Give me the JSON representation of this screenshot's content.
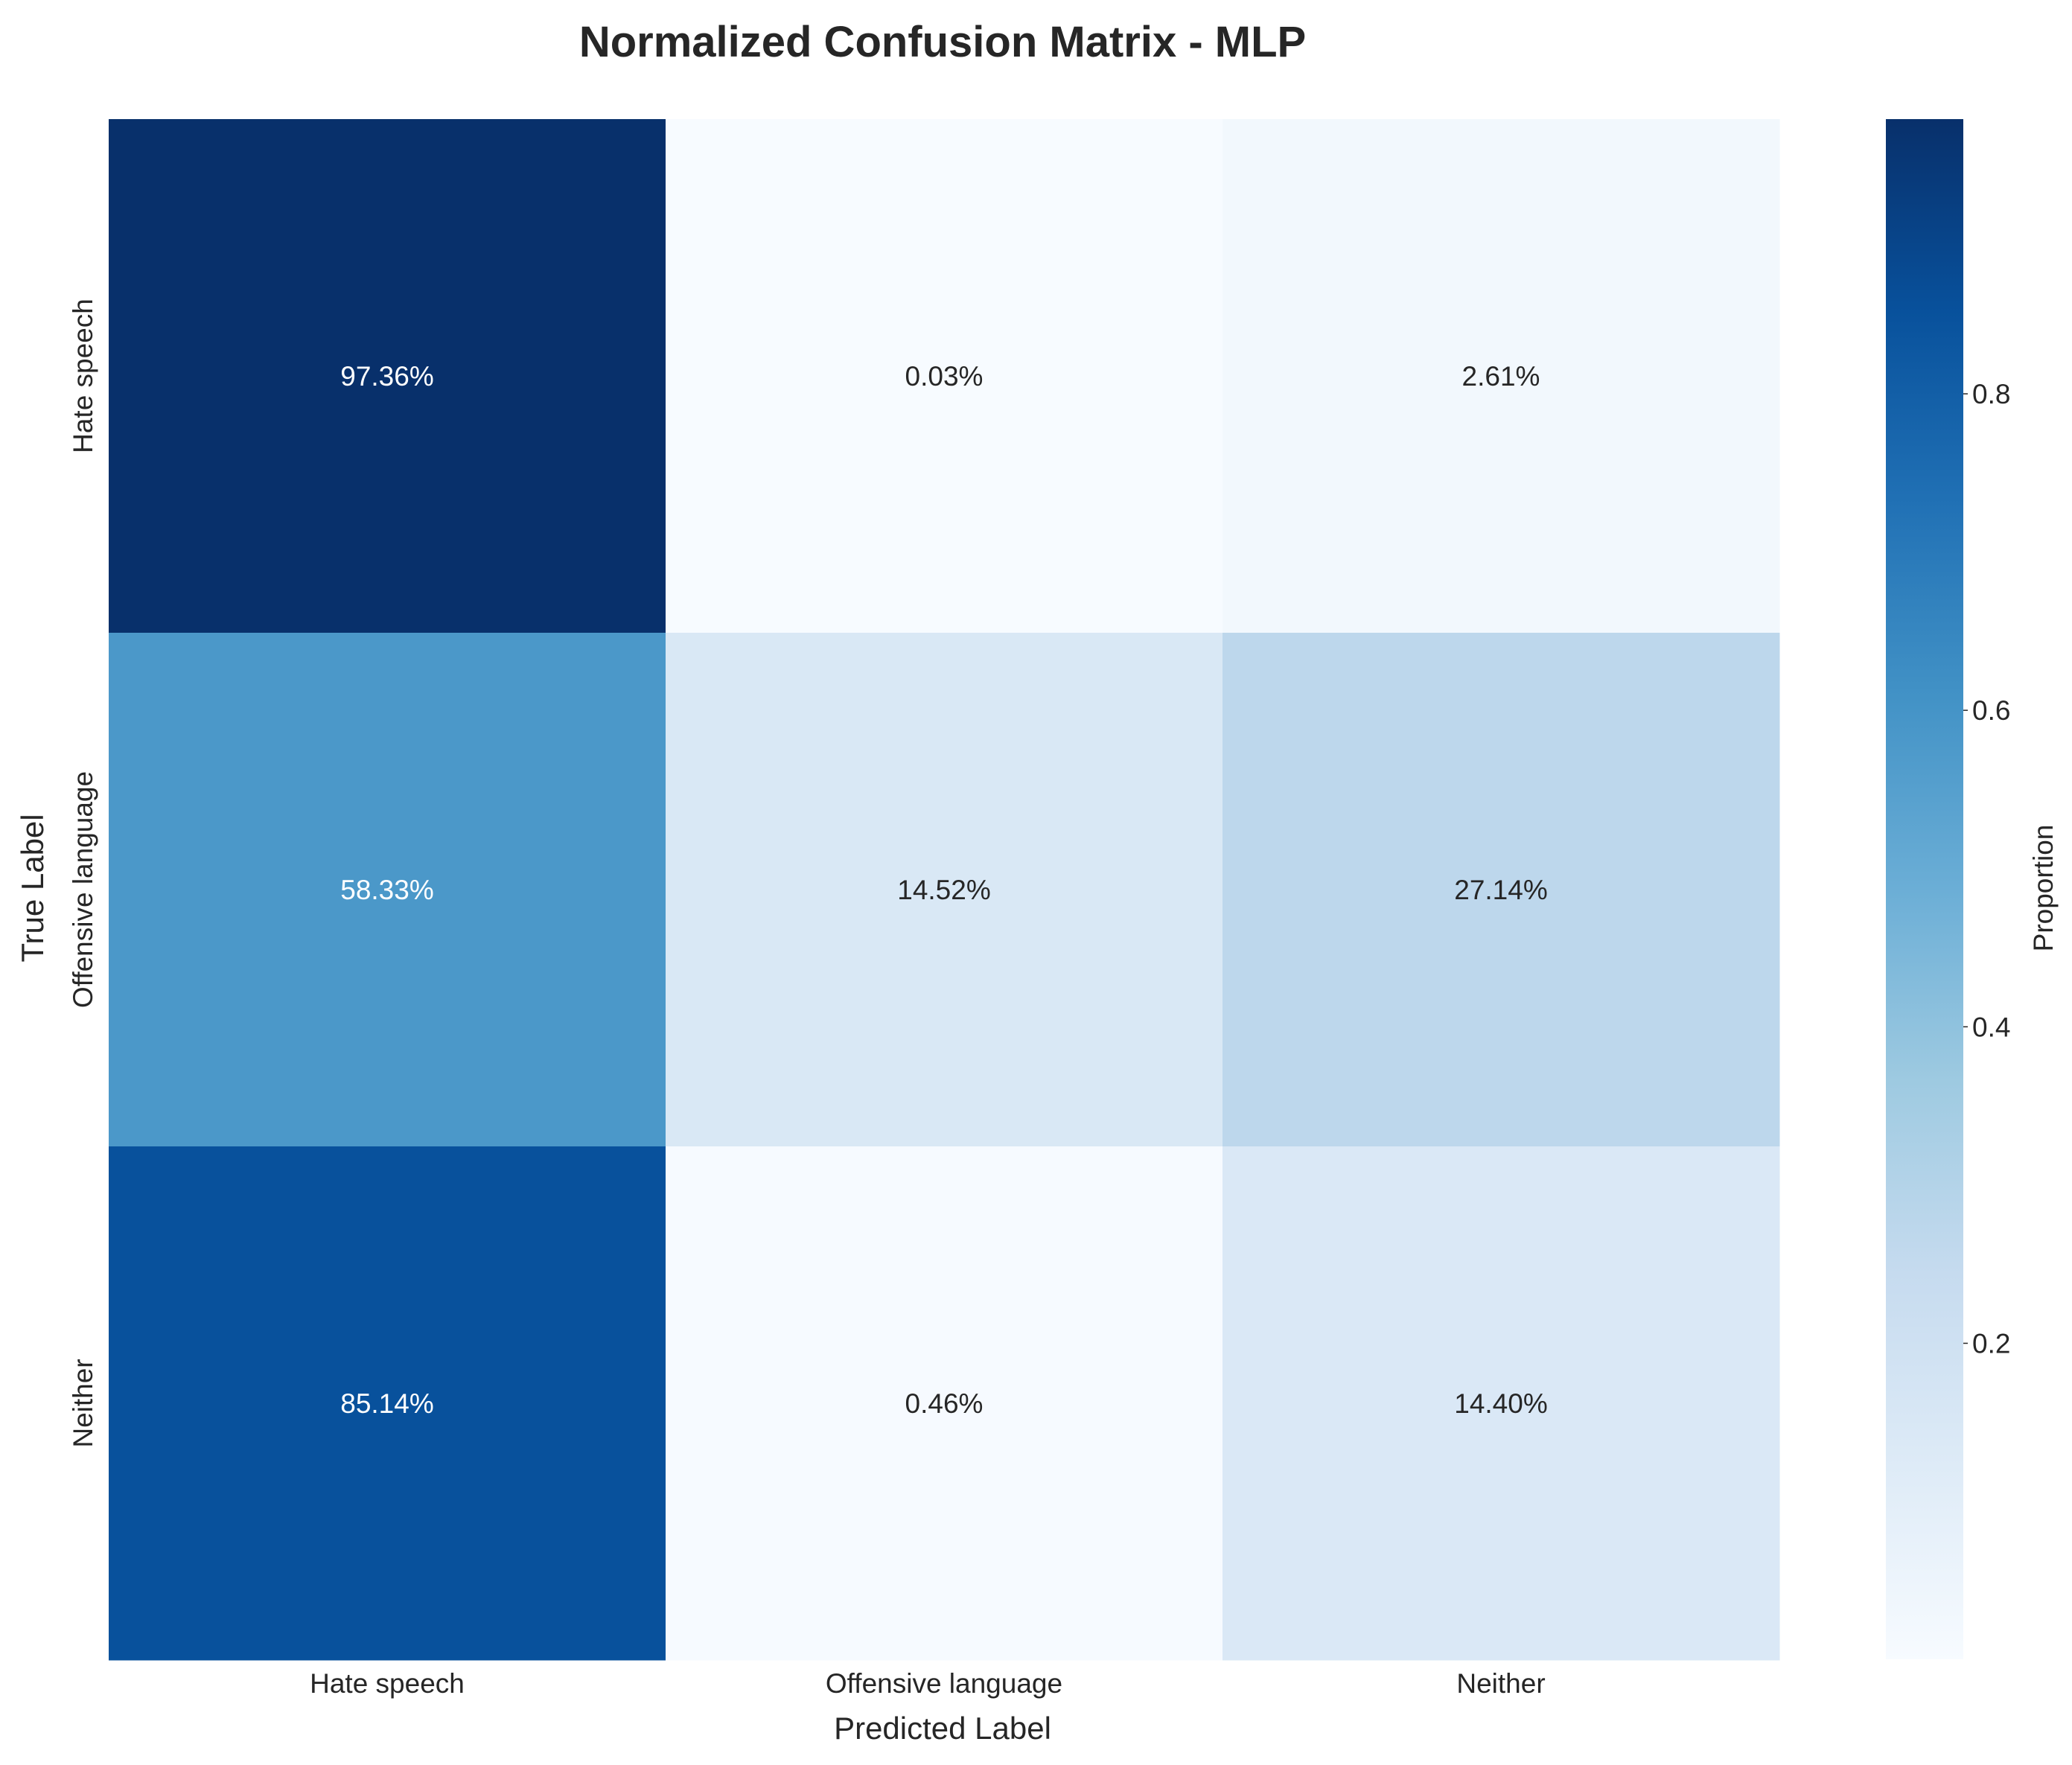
{
  "chart_data": {
    "type": "heatmap",
    "title": "Normalized Confusion Matrix - MLP",
    "xlabel": "Predicted Label",
    "ylabel": "True Label",
    "x_categories": [
      "Hate speech",
      "Offensive language",
      "Neither"
    ],
    "y_categories": [
      "Hate speech",
      "Offensive language",
      "Neither"
    ],
    "values": [
      [
        0.9736,
        0.0003,
        0.0261
      ],
      [
        0.5833,
        0.1452,
        0.2714
      ],
      [
        0.8514,
        0.0046,
        0.144
      ]
    ],
    "annotations": [
      [
        "97.36%",
        "0.03%",
        "2.61%"
      ],
      [
        "58.33%",
        "14.52%",
        "27.14%"
      ],
      [
        "85.14%",
        "0.46%",
        "14.40%"
      ]
    ],
    "colormap": "Blues",
    "colormap_stops": [
      "#f7fbff",
      "#deebf7",
      "#c6dbef",
      "#9ecae1",
      "#6baed6",
      "#4292c6",
      "#2171b5",
      "#08519c",
      "#08306b"
    ],
    "colorbar": {
      "label": "Proportion",
      "vmin": 0.0003,
      "vmax": 0.9736,
      "ticks": [
        0.2,
        0.4,
        0.6,
        0.8
      ],
      "tick_labels": [
        "0.2",
        "0.4",
        "0.6",
        "0.8"
      ]
    }
  }
}
